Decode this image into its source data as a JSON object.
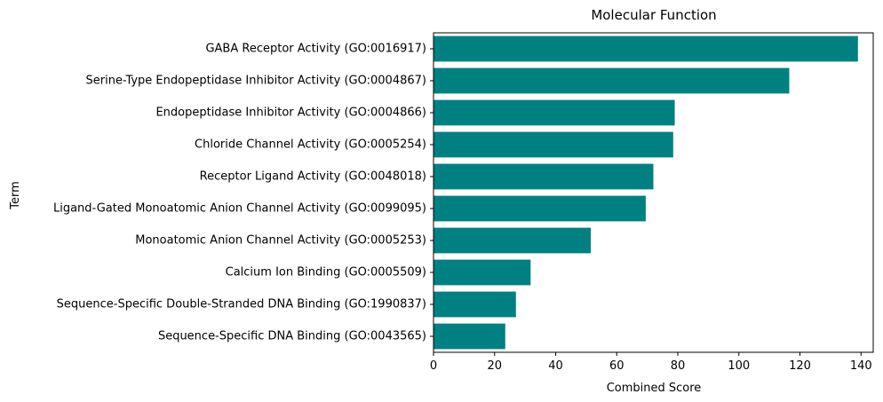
{
  "chart_data": {
    "type": "bar",
    "orientation": "horizontal",
    "title": "Molecular Function",
    "xlabel": "Combined Score",
    "ylabel": "Term",
    "xlim": [
      0,
      144
    ],
    "xticks": [
      0,
      20,
      40,
      60,
      80,
      100,
      120,
      140
    ],
    "grid": false,
    "bar_color": "#008080",
    "categories": [
      "GABA Receptor Activity (GO:0016917)",
      "Serine-Type Endopeptidase Inhibitor Activity (GO:0004867)",
      "Endopeptidase Inhibitor Activity (GO:0004866)",
      "Chloride Channel Activity (GO:0005254)",
      "Receptor Ligand Activity (GO:0048018)",
      "Ligand-Gated Monoatomic Anion Channel Activity (GO:0099095)",
      "Monoatomic Anion Channel Activity (GO:0005253)",
      "Calcium Ion Binding (GO:0005509)",
      "Sequence-Specific Double-Stranded DNA Binding (GO:1990837)",
      "Sequence-Specific DNA Binding (GO:0043565)"
    ],
    "values": [
      139,
      116.5,
      79,
      78.5,
      72,
      69.5,
      51.5,
      31.8,
      27,
      23.5
    ]
  }
}
